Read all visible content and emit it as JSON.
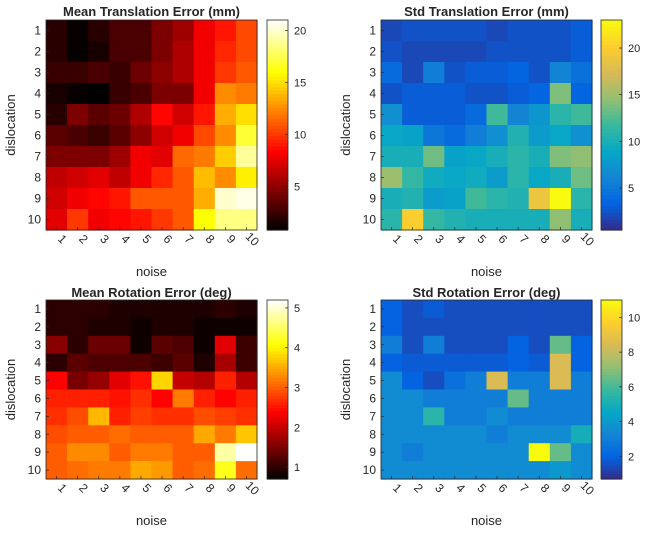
{
  "chart_data": [
    {
      "type": "heatmap",
      "title": "Mean Translation Error (mm)",
      "xlabel": "noise",
      "ylabel": "dislocation",
      "x_categories": [
        "1",
        "2",
        "3",
        "4",
        "5",
        "6",
        "7",
        "8",
        "9",
        "10"
      ],
      "y_categories": [
        "1",
        "2",
        "3",
        "4",
        "5",
        "6",
        "7",
        "8",
        "9",
        "10"
      ],
      "colormap": "hot",
      "clim": [
        0.8,
        21
      ],
      "colorbar_ticks": [
        5,
        10,
        15,
        20
      ],
      "values": [
        [
          2.0,
          1.0,
          2.0,
          3.0,
          3.0,
          4.5,
          5.5,
          8.0,
          9.0,
          10.5
        ],
        [
          2.0,
          1.0,
          1.5,
          3.0,
          3.0,
          4.5,
          6.0,
          8.0,
          9.5,
          10.5
        ],
        [
          2.5,
          2.5,
          3.0,
          2.5,
          4.0,
          5.0,
          6.0,
          8.0,
          10.0,
          11.0
        ],
        [
          1.5,
          1.0,
          0.8,
          2.5,
          3.0,
          4.5,
          4.5,
          8.0,
          12.5,
          12.0
        ],
        [
          2.0,
          4.5,
          3.5,
          4.0,
          6.0,
          8.5,
          7.0,
          9.0,
          13.5,
          15.0
        ],
        [
          3.5,
          3.0,
          2.5,
          3.5,
          5.0,
          7.0,
          8.0,
          10.5,
          12.5,
          17.0
        ],
        [
          4.5,
          4.5,
          4.5,
          5.5,
          8.0,
          7.5,
          11.5,
          12.0,
          14.5,
          19.0
        ],
        [
          6.5,
          7.0,
          7.5,
          6.5,
          8.0,
          9.5,
          11.0,
          14.0,
          12.5,
          15.5
        ],
        [
          7.0,
          8.0,
          8.5,
          9.0,
          11.0,
          11.0,
          11.0,
          13.5,
          20.0,
          20.5
        ],
        [
          7.5,
          10.0,
          8.0,
          8.5,
          9.0,
          10.0,
          11.0,
          16.0,
          18.5,
          18.5
        ]
      ]
    },
    {
      "type": "heatmap",
      "title": "Std Translation Error (mm)",
      "xlabel": "noise",
      "ylabel": "dislocation",
      "x_categories": [
        "1",
        "2",
        "3",
        "4",
        "5",
        "6",
        "7",
        "8",
        "9",
        "10"
      ],
      "y_categories": [
        "1",
        "2",
        "3",
        "4",
        "5",
        "6",
        "7",
        "8",
        "9",
        "10"
      ],
      "colormap": "parula",
      "clim": [
        0.5,
        23
      ],
      "colorbar_ticks": [
        5,
        10,
        15,
        20
      ],
      "values": [
        [
          2.0,
          2.5,
          2.5,
          2.5,
          2.5,
          2.0,
          2.5,
          2.5,
          2.5,
          3.0
        ],
        [
          2.5,
          2.0,
          2.0,
          2.0,
          2.0,
          2.5,
          2.5,
          2.5,
          2.5,
          3.0
        ],
        [
          4.0,
          2.0,
          5.5,
          2.5,
          3.0,
          3.0,
          3.5,
          2.5,
          6.0,
          4.5
        ],
        [
          2.5,
          3.0,
          3.0,
          3.0,
          2.5,
          2.5,
          3.0,
          3.5,
          14.0,
          3.5
        ],
        [
          7.0,
          3.0,
          3.0,
          3.0,
          4.0,
          12.0,
          6.0,
          7.5,
          11.0,
          12.0
        ],
        [
          9.0,
          8.5,
          5.0,
          4.0,
          5.5,
          7.0,
          10.5,
          8.0,
          9.0,
          7.0
        ],
        [
          10.0,
          10.0,
          13.5,
          8.5,
          9.0,
          10.0,
          11.0,
          10.0,
          14.0,
          14.5
        ],
        [
          15.0,
          11.5,
          9.5,
          9.0,
          9.5,
          8.0,
          11.0,
          9.0,
          10.0,
          13.5
        ],
        [
          10.0,
          10.5,
          8.0,
          8.5,
          12.0,
          11.0,
          10.5,
          19.0,
          23.0,
          11.0
        ],
        [
          11.0,
          20.0,
          11.5,
          10.5,
          10.0,
          10.0,
          10.0,
          10.0,
          14.5,
          10.0
        ]
      ]
    },
    {
      "type": "heatmap",
      "title": "Mean Rotation Error (deg)",
      "xlabel": "noise",
      "ylabel": "dislocation",
      "x_categories": [
        "1",
        "2",
        "3",
        "4",
        "5",
        "6",
        "7",
        "8",
        "9",
        "10"
      ],
      "y_categories": [
        "1",
        "2",
        "3",
        "4",
        "5",
        "6",
        "7",
        "8",
        "9",
        "10"
      ],
      "colormap": "hot",
      "clim": [
        0.7,
        5.2
      ],
      "colorbar_ticks": [
        1,
        2,
        3,
        4,
        5
      ],
      "values": [
        [
          1.0,
          1.0,
          1.0,
          0.9,
          0.9,
          0.9,
          0.9,
          0.9,
          1.0,
          0.9
        ],
        [
          1.0,
          1.0,
          0.9,
          0.9,
          0.8,
          0.9,
          0.9,
          0.8,
          0.8,
          0.8
        ],
        [
          1.6,
          1.0,
          1.4,
          1.4,
          0.8,
          1.3,
          1.2,
          0.8,
          2.2,
          1.1
        ],
        [
          1.0,
          1.3,
          1.2,
          1.2,
          1.2,
          1.1,
          1.3,
          0.9,
          1.8,
          1.1
        ],
        [
          2.4,
          1.5,
          1.7,
          2.2,
          2.5,
          3.8,
          2.0,
          1.9,
          2.6,
          1.9
        ],
        [
          2.6,
          2.6,
          2.6,
          2.5,
          2.7,
          2.4,
          3.2,
          2.6,
          2.4,
          2.6
        ],
        [
          2.7,
          2.9,
          3.6,
          2.6,
          2.8,
          2.7,
          2.7,
          2.9,
          2.8,
          2.7
        ],
        [
          2.9,
          3.0,
          3.0,
          3.1,
          3.0,
          3.0,
          3.0,
          3.5,
          3.2,
          3.7
        ],
        [
          3.0,
          3.3,
          3.3,
          3.0,
          3.2,
          3.2,
          3.0,
          3.0,
          4.8,
          5.2
        ],
        [
          3.0,
          3.1,
          3.2,
          3.2,
          3.5,
          3.4,
          3.0,
          3.1,
          4.2,
          3.1
        ]
      ]
    },
    {
      "type": "heatmap",
      "title": "Std Rotation Error (deg)",
      "xlabel": "noise",
      "ylabel": "dislocation",
      "x_categories": [
        "1",
        "2",
        "3",
        "4",
        "5",
        "6",
        "7",
        "8",
        "9",
        "10"
      ],
      "y_categories": [
        "1",
        "2",
        "3",
        "4",
        "5",
        "6",
        "7",
        "8",
        "9",
        "10"
      ],
      "colormap": "parula",
      "clim": [
        0.7,
        11
      ],
      "colorbar_ticks": [
        2,
        4,
        6,
        8,
        10
      ],
      "values": [
        [
          2.0,
          1.5,
          1.8,
          1.5,
          1.5,
          1.5,
          1.5,
          1.5,
          1.5,
          1.5
        ],
        [
          2.0,
          1.5,
          1.5,
          1.5,
          1.5,
          1.5,
          1.5,
          1.5,
          1.5,
          1.5
        ],
        [
          3.0,
          1.5,
          3.0,
          1.5,
          1.5,
          1.5,
          2.0,
          1.5,
          6.5,
          2.0
        ],
        [
          2.0,
          1.8,
          1.8,
          1.8,
          1.8,
          1.8,
          2.0,
          1.8,
          8.5,
          2.0
        ],
        [
          3.5,
          2.0,
          1.5,
          2.5,
          3.0,
          8.5,
          3.0,
          3.0,
          8.5,
          3.0
        ],
        [
          3.5,
          3.5,
          3.0,
          3.0,
          3.0,
          3.0,
          6.5,
          3.0,
          3.0,
          3.0
        ],
        [
          3.5,
          3.5,
          5.5,
          3.0,
          3.0,
          3.5,
          3.0,
          3.0,
          3.0,
          3.0
        ],
        [
          3.5,
          3.5,
          3.5,
          3.5,
          3.5,
          3.0,
          3.5,
          3.5,
          3.5,
          5.0
        ],
        [
          3.5,
          3.0,
          3.5,
          3.5,
          3.5,
          3.5,
          3.5,
          11.0,
          6.5,
          3.5
        ],
        [
          3.5,
          3.5,
          3.5,
          3.5,
          3.5,
          3.5,
          3.5,
          3.5,
          4.0,
          3.5
        ]
      ]
    }
  ]
}
